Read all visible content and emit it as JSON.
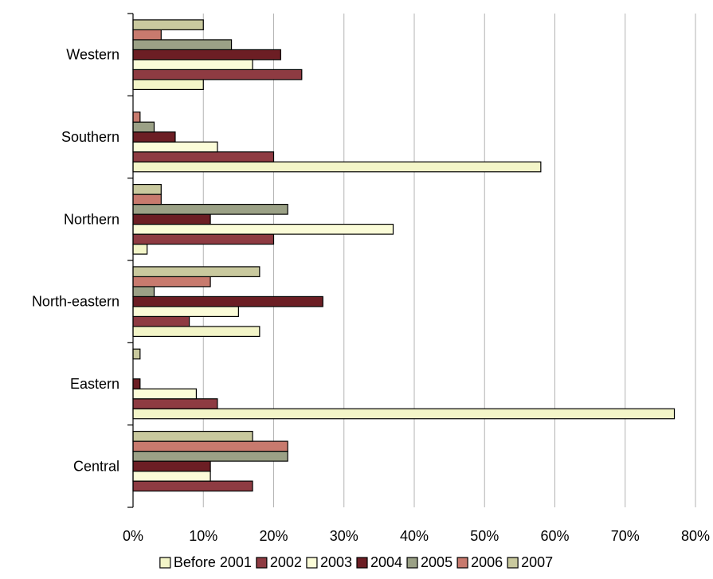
{
  "chart_data": {
    "type": "bar",
    "orientation": "horizontal",
    "title": "",
    "xlabel": "",
    "ylabel": "",
    "xlim": [
      0,
      80
    ],
    "x_ticks": [
      "0%",
      "10%",
      "20%",
      "30%",
      "40%",
      "50%",
      "60%",
      "70%",
      "80%"
    ],
    "grid": "vertical gridlines at each 10%",
    "legend_position": "bottom",
    "categories": [
      "Western",
      "Southern",
      "Northern",
      "North-eastern",
      "Eastern",
      "Central"
    ],
    "series": [
      {
        "name": "Before 2001",
        "color": "#f3f5c8",
        "values": [
          10,
          58,
          2,
          18,
          77,
          0
        ]
      },
      {
        "name": "2002",
        "color": "#8e3b42",
        "values": [
          24,
          20,
          20,
          8,
          12,
          17
        ]
      },
      {
        "name": "2003",
        "color": "#fbfcd8",
        "values": [
          17,
          12,
          37,
          15,
          9,
          11
        ]
      },
      {
        "name": "2004",
        "color": "#6c1e24",
        "values": [
          21,
          6,
          11,
          27,
          1,
          11
        ]
      },
      {
        "name": "2005",
        "color": "#9ba186",
        "values": [
          14,
          3,
          22,
          3,
          0,
          22
        ]
      },
      {
        "name": "2006",
        "color": "#c87a6e",
        "values": [
          4,
          1,
          4,
          11,
          0,
          22
        ]
      },
      {
        "name": "2007",
        "color": "#c9c99e",
        "values": [
          10,
          0,
          4,
          18,
          1,
          17
        ]
      }
    ]
  }
}
